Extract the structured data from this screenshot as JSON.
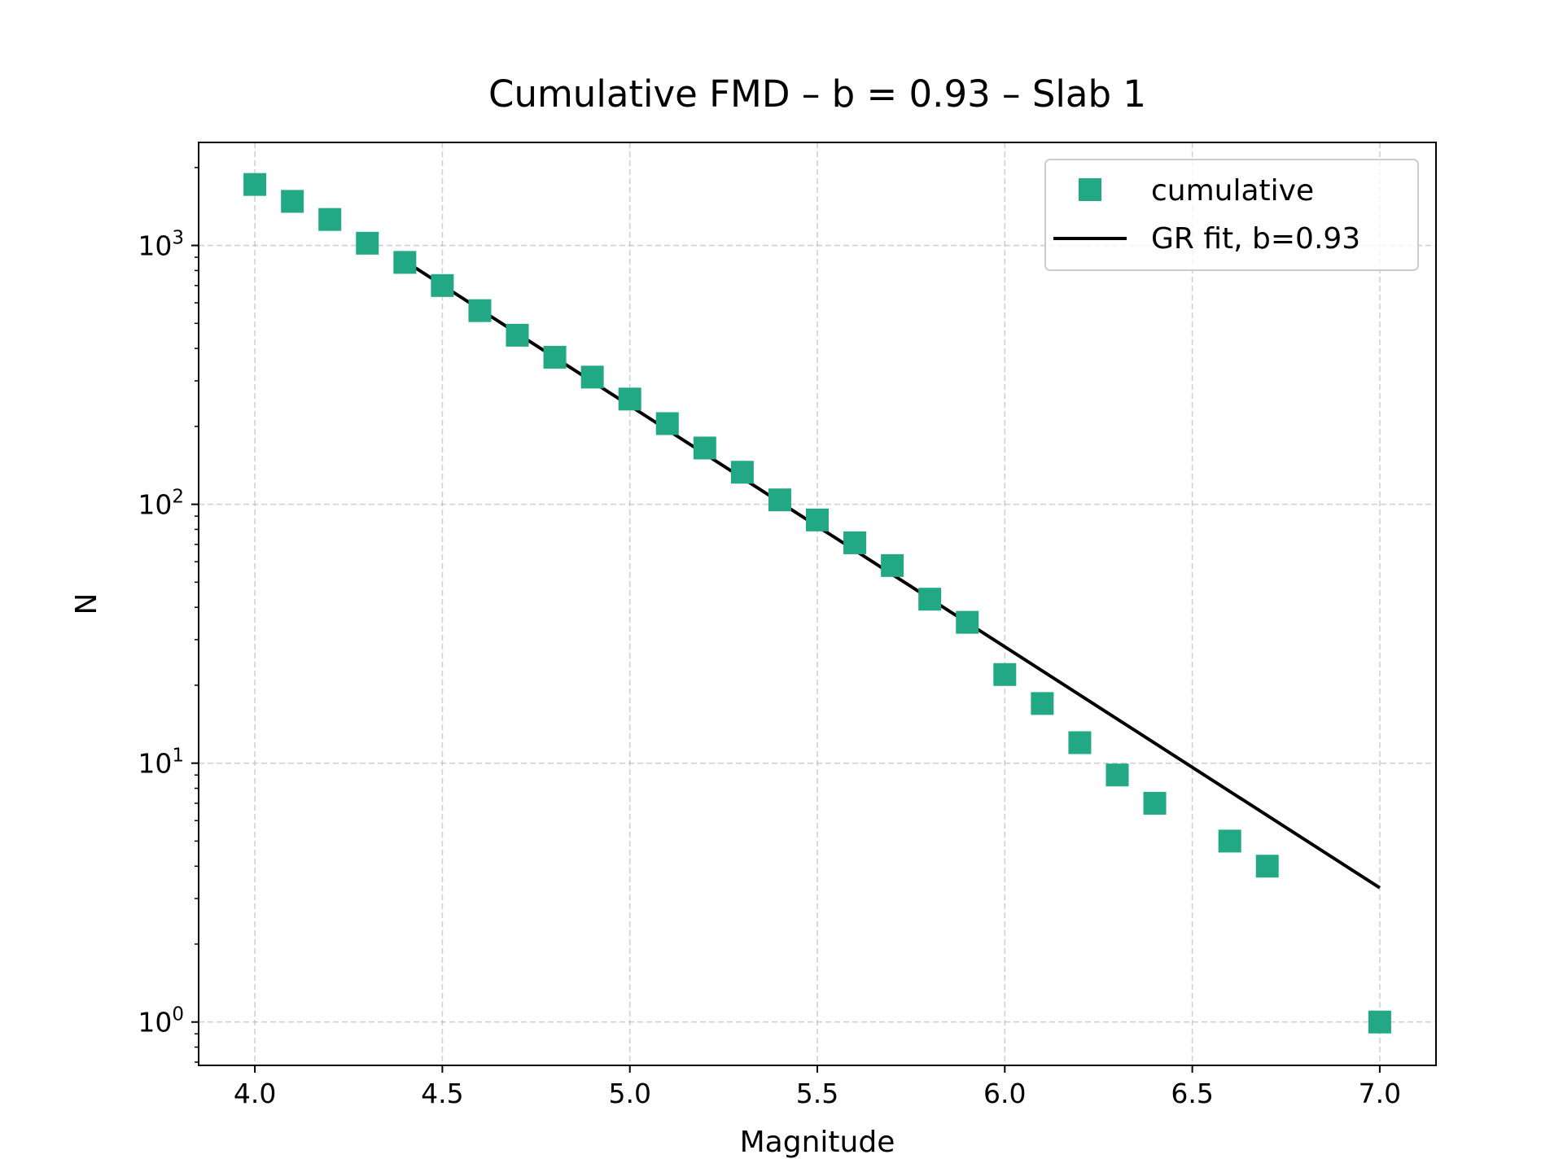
{
  "chart_data": {
    "type": "scatter",
    "title": "Cumulative FMD – b = 0.93 – Slab 1",
    "xlabel": "Magnitude",
    "ylabel": "N",
    "xlim": [
      3.85,
      7.15
    ],
    "ylim": [
      0.68,
      2500
    ],
    "yscale": "log",
    "grid": true,
    "legend_position": "top-right",
    "x_ticks": [
      "4.0",
      "4.5",
      "5.0",
      "5.5",
      "6.0",
      "6.5",
      "7.0"
    ],
    "y_ticks": [
      {
        "base": "10",
        "exp": "0"
      },
      {
        "base": "10",
        "exp": "1"
      },
      {
        "base": "10",
        "exp": "2"
      },
      {
        "base": "10",
        "exp": "3"
      }
    ],
    "series": [
      {
        "name": "cumulative",
        "kind": "scatter",
        "marker": "square",
        "color": "#22a884",
        "x": [
          4.0,
          4.1,
          4.2,
          4.3,
          4.4,
          4.5,
          4.6,
          4.7,
          4.8,
          4.9,
          5.0,
          5.1,
          5.2,
          5.3,
          5.4,
          5.5,
          5.6,
          5.7,
          5.8,
          5.9,
          6.0,
          6.1,
          6.2,
          6.3,
          6.4,
          6.6,
          6.7,
          7.0
        ],
        "y": [
          1720,
          1480,
          1260,
          1020,
          860,
          700,
          560,
          450,
          370,
          310,
          255,
          205,
          165,
          133,
          104,
          87,
          71,
          58,
          43,
          35,
          22,
          17,
          12,
          9,
          7,
          5,
          4,
          1
        ]
      },
      {
        "name": "GR fit, b=0.93",
        "kind": "line",
        "color": "#000000",
        "x": [
          4.4,
          7.0
        ],
        "y": [
          870,
          3.3
        ]
      }
    ]
  }
}
